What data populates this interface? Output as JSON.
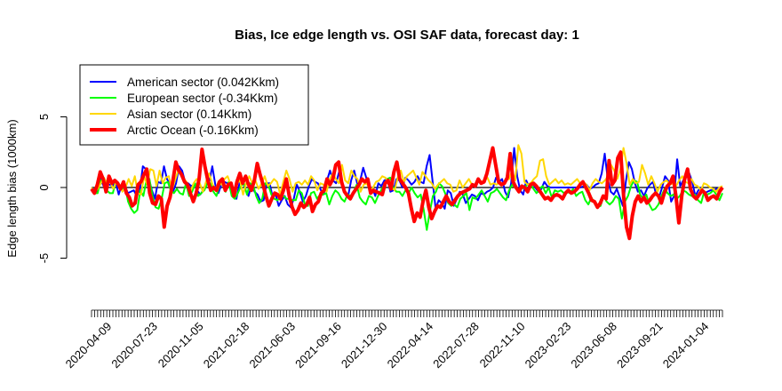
{
  "chart_data": {
    "type": "line",
    "title": "Bias, Ice edge length vs. OSI SAF data, forecast day: 1",
    "xlabel": "",
    "ylabel": "Edge length bias (1000km)",
    "ylim": [
      -8.5,
      8.5
    ],
    "yticks": [
      -5,
      0,
      5
    ],
    "x_tick_labels": [
      "2020-04-09",
      "2020-07-23",
      "2020-11-05",
      "2021-02-18",
      "2021-06-03",
      "2021-09-16",
      "2021-12-30",
      "2022-04-14",
      "2022-07-28",
      "2022-11-10",
      "2023-02-23",
      "2023-06-08",
      "2023-09-21",
      "2024-01-04"
    ],
    "x_tick_count": 208,
    "x_date_range": [
      "2020-03-05",
      "2024-02-15"
    ],
    "legend_position": "top-left",
    "series": [
      {
        "name": "American sector (0.042Kkm)",
        "color": "#0000ff",
        "values": [
          0,
          -0.2,
          -0.3,
          0.6,
          0.1,
          0.3,
          0.2,
          0.1,
          0.4,
          -0.5,
          0.2,
          0.2,
          -0.4,
          -0.3,
          -0.2,
          -0.6,
          -0.2,
          1.5,
          1.3,
          0.6,
          -0.2,
          -0.8,
          0.4,
          0.3,
          1.5,
          0.6,
          0.2,
          -0.3,
          0.3,
          1.5,
          1.2,
          0.4,
          0.3,
          0.1,
          0.2,
          -0.2,
          -0.5,
          -0.2,
          0.3,
          0.4,
          1.5,
          0.2,
          -0.4,
          0.2,
          0.4,
          0.3,
          0.3,
          -0.3,
          -0.8,
          0.3,
          0.6,
          -0.2,
          -0.6,
          0.2,
          -0.3,
          -0.5,
          -1.0,
          -0.9,
          0.3,
          0.3,
          -0.7,
          -0.5,
          -1.3,
          -0.9,
          -0.6,
          -1.2,
          -1.4,
          -0.8,
          0.2,
          -0.3,
          -1.0,
          -0.6,
          0.1,
          0.6,
          0.4,
          0.3,
          -0.2,
          -0.4,
          0.5,
          1.2,
          0.5,
          0.3,
          1.1,
          0.3,
          -0.4,
          -0.6,
          0.5,
          1.2,
          0.3,
          0.5,
          1.4,
          0.7,
          -0.1,
          0.0,
          -0.6,
          0.3,
          0.1,
          0.5,
          0.6,
          -0.3,
          -0.2,
          0.6,
          0.5,
          0.0,
          0.7,
          0.5,
          0.2,
          0.4,
          0.8,
          0.4,
          0.3,
          1.5,
          2.3,
          0.4,
          -1.5,
          -0.9,
          -1.1,
          -1.5,
          -0.2,
          -0.4,
          -1.3,
          -0.8,
          -0.3,
          -0.5,
          -1.1,
          -0.8,
          -0.5,
          -0.6,
          -0.9,
          -0.4,
          -0.5,
          -0.3,
          -0.2,
          0.0,
          0.7,
          0.4,
          0.6,
          -0.3,
          -0.7,
          0.3,
          2.8,
          0.8,
          -0.2,
          -0.5,
          0.5,
          0.0,
          0.3,
          0.0,
          -0.3,
          -0.1,
          0.4,
          0.1,
          0.0,
          0.0,
          0.0,
          0.0,
          0.0,
          0.0,
          0.0,
          0.0,
          0.0,
          0.0,
          0.0,
          0.1,
          0.2,
          -0.1,
          0.0,
          0.2,
          0.3,
          1.0,
          2.4,
          0.6,
          -0.3,
          -0.5,
          -0.1,
          -0.7,
          -1.3,
          0.4,
          1.8,
          1.3,
          0.3,
          -0.3,
          -0.2,
          -0.6,
          -0.1,
          0.2,
          0.4,
          -0.5,
          -0.7,
          0.0,
          0.8,
          0.5,
          -1.0,
          -0.6,
          2.0,
          0.1,
          0.5,
          0.8,
          1.0,
          0.4,
          -0.6,
          -0.2,
          0.0,
          -0.4,
          -0.3,
          -0.2,
          -0.2,
          -0.1,
          0.0,
          0.0
        ]
      },
      {
        "name": "European sector (-0.34Kkm)",
        "color": "#00ff00",
        "values": [
          -0.1,
          -0.4,
          -0.4,
          0.5,
          0.6,
          -0.2,
          -0.4,
          -0.4,
          0.5,
          0.2,
          -0.1,
          0.1,
          -1.0,
          -1.5,
          -1.8,
          -1.6,
          -0.2,
          -0.6,
          0.5,
          0.6,
          -0.6,
          -1.4,
          -1.5,
          -0.8,
          0.3,
          0.4,
          -0.2,
          -0.4,
          -0.1,
          -0.4,
          -0.5,
          0.3,
          -0.6,
          -0.3,
          0.3,
          -0.6,
          -0.4,
          -0.2,
          0.3,
          0.3,
          -0.3,
          -0.6,
          0.2,
          0.4,
          -0.3,
          0.4,
          -0.6,
          -0.8,
          -0.4,
          0.1,
          0.3,
          -0.5,
          0.3,
          0.2,
          -0.6,
          -1.1,
          -0.8,
          0.3,
          0.2,
          -0.5,
          -0.8,
          -0.9,
          -0.7,
          -0.6,
          -0.8,
          -0.8,
          -0.9,
          -0.9,
          -0.2,
          -0.4,
          -1.2,
          -1.3,
          -0.4,
          -0.3,
          -0.8,
          -0.5,
          -0.5,
          -0.4,
          -1.2,
          -0.6,
          -0.2,
          -0.4,
          -0.8,
          -1.0,
          -0.5,
          -0.6,
          -0.3,
          0.2,
          -0.7,
          -1.0,
          -1.2,
          -0.6,
          -0.7,
          -1.1,
          -0.6,
          -0.2,
          0.2,
          0.6,
          0.7,
          0.0,
          -0.3,
          -0.3,
          -0.6,
          -0.2,
          -0.4,
          0.0,
          -0.4,
          -0.7,
          -0.5,
          -1.6,
          -3.0,
          -1.7,
          -0.6,
          -0.3,
          0.3,
          0.1,
          -0.4,
          -1.1,
          -1.3,
          -1.2,
          -1.4,
          -0.8,
          -0.6,
          -0.4,
          -1.6,
          -0.7,
          -0.8,
          -0.5,
          -0.2,
          -0.6,
          -1.0,
          -0.4,
          -0.3,
          -0.1,
          -0.4,
          -0.7,
          -0.9,
          -0.2,
          0.2,
          0.0,
          -0.2,
          -0.1,
          0.0,
          0.2,
          0.3,
          -0.1,
          -0.4,
          -0.1,
          0.1,
          -0.4,
          0.0,
          -0.7,
          -0.2,
          -0.3,
          -0.2,
          -0.4,
          -0.3,
          -0.4,
          -0.1,
          -0.6,
          -0.4,
          -0.3,
          -0.9,
          -1.2,
          -0.7,
          -1.1,
          -1.4,
          -1.3,
          -0.6,
          -1.0,
          -1.2,
          -1.0,
          -0.6,
          -0.8,
          -2.2,
          -1.0,
          -0.6,
          0.1,
          0.5,
          0.4,
          -0.5,
          -0.8,
          -0.5,
          -1.2,
          -1.6,
          -1.5,
          -1.2,
          -0.6,
          -0.1,
          -0.4,
          -0.6,
          -0.5,
          -0.8,
          -0.6,
          -0.2,
          -0.3,
          -0.5,
          -0.6,
          -0.5,
          -0.9,
          -1.1,
          -0.3,
          -0.5,
          -0.4,
          -0.2,
          -0.5,
          -0.9,
          -0.4
        ]
      },
      {
        "name": "Asian sector (0.14Kkm)",
        "color": "#ffd700",
        "values": [
          0.0,
          -0.3,
          -0.1,
          0.3,
          0.7,
          0.3,
          0.4,
          -0.1,
          0.4,
          0.2,
          -0.3,
          0.0,
          0.6,
          0.1,
          0.8,
          -0.4,
          -0.5,
          0.8,
          0.2,
          1.3,
          1.2,
          0.1,
          1.2,
          0.3,
          0.7,
          0.8,
          -0.2,
          0.5,
          1.2,
          1.0,
          0.6,
          0.3,
          -0.3,
          0.3,
          0.6,
          0.3,
          -0.3,
          0.4,
          1.0,
          0.3,
          -0.2,
          0.4,
          0.2,
          0.6,
          0.8,
          0.2,
          -0.3,
          0.3,
          0.5,
          -0.5,
          0.3,
          0.8,
          0.3,
          0.5,
          -0.1,
          0.3,
          0.8,
          0.1,
          0.3,
          0.6,
          0.4,
          -0.5,
          0.4,
          1.2,
          0.6,
          -0.3,
          0.3,
          0.4,
          0.2,
          0.5,
          0.2,
          0.8,
          0.5,
          -0.2,
          0.3,
          0.2,
          -0.3,
          0.6,
          1.0,
          0.6,
          0.3,
          1.6,
          0.5,
          0.3,
          1.2,
          0.8,
          0.6,
          -0.3,
          0.2,
          0.3,
          -0.2,
          0.0,
          0.4,
          0.5,
          0.8,
          0.7,
          0.3,
          0.0,
          -0.2,
          0.7,
          1.2,
          0.4,
          0.8,
          1.0,
          1.2,
          0.7,
          0.2,
          1.1,
          0.8,
          0.5,
          0.3,
          -0.1,
          0.2,
          0.4,
          0.6,
          0.3,
          0.2,
          -0.3,
          -0.2,
          0.5,
          0.0,
          0.3,
          0.6,
          0.2,
          0.2,
          0.6,
          0.4,
          0.5,
          0.7,
          0.2,
          0.3,
          0.2,
          0.4,
          0.2,
          0.5,
          0.6,
          1.2,
          0.5,
          3.0,
          2.4,
          0.4,
          0.2,
          0.3,
          0.6,
          0.8,
          1.9,
          2.0,
          0.8,
          0.2,
          0.4,
          0.6,
          0.3,
          0.5,
          0.2,
          0.3,
          0.2,
          0.4,
          0.6,
          0.3,
          0.4,
          0.2,
          -0.2,
          0.3,
          0.6,
          0.4,
          0.3,
          0.5,
          0.8,
          1.6,
          1.2,
          0.6,
          1.3,
          2.8,
          1.7,
          0.2,
          0.6,
          0.3,
          0.4,
          1.6,
          1.0,
          0.2,
          0.8,
          0.3,
          -0.3,
          0.2,
          0.4,
          0.5,
          0.2,
          0.3,
          0.1,
          0.5,
          0.8,
          0.4,
          0.3,
          0.6,
          0.2,
          0.1,
          -0.2,
          0.3,
          0.2,
          0.0,
          -0.1,
          -0.3,
          0.0,
          0.1
        ]
      },
      {
        "name": "Arctic Ocean (-0.16Kkm)",
        "color": "#ff0000",
        "values": [
          -0.1,
          -0.4,
          0.2,
          1.1,
          0.6,
          -0.3,
          0.8,
          0.3,
          0.5,
          0.3,
          -0.1,
          0.4,
          -0.4,
          -0.7,
          -1.3,
          -1.1,
          0.2,
          0.4,
          0.9,
          1.3,
          -0.4,
          -1.1,
          -1.2,
          -0.6,
          -0.8,
          -2.8,
          -1.3,
          -0.7,
          0.5,
          1.8,
          1.2,
          0.9,
          0.4,
          0.2,
          -0.4,
          -1.0,
          -0.4,
          0.6,
          2.7,
          1.5,
          0.5,
          -0.2,
          0.0,
          -0.2,
          0.4,
          0.6,
          -0.2,
          0.2,
          0.3,
          -0.6,
          0.4,
          1.0,
          0.3,
          0.8,
          0.2,
          -0.2,
          0.5,
          1.7,
          0.9,
          0.2,
          -0.6,
          -1.3,
          -0.8,
          -0.4,
          -0.5,
          -0.8,
          -0.2,
          0.6,
          -0.6,
          -1.4,
          -1.9,
          -1.6,
          -1.1,
          -1.4,
          -1.2,
          -0.7,
          -1.7,
          -1.2,
          -1.0,
          -0.4,
          -0.2,
          0.6,
          0.2,
          0.6,
          1.6,
          1.8,
          0.4,
          -0.3,
          -0.6,
          -0.8,
          -0.4,
          -0.1,
          0.2,
          0.6,
          0.4,
          0.6,
          -0.4,
          -0.2,
          -0.3,
          -0.4,
          -0.5,
          0.3,
          0.5,
          -0.1,
          1.1,
          1.8,
          0.6,
          0.3,
          0.0,
          -0.4,
          -1.5,
          -2.4,
          -1.8,
          -2.1,
          -1.0,
          -0.2,
          -1.4,
          -2.2,
          -1.7,
          -1.3,
          -1.4,
          -1.0,
          -0.6,
          -1.0,
          -1.2,
          -0.9,
          -0.6,
          -0.4,
          -0.3,
          -0.2,
          -0.1,
          0.2,
          0.1,
          0.6,
          0.3,
          0.4,
          1.0,
          1.9,
          2.8,
          1.6,
          0.4,
          0.2,
          0.3,
          0.7,
          2.4,
          0.4,
          0.0,
          -0.3,
          0.1,
          0.0,
          -0.3,
          0.2,
          0.3,
          0.1,
          -0.2,
          -0.5,
          -0.8,
          -0.7,
          -0.9,
          -0.6,
          -0.5,
          -0.6,
          -0.8,
          -0.4,
          -0.2,
          -0.4,
          -0.3,
          -0.1,
          0.2,
          0.4,
          0.0,
          -0.4,
          -0.9,
          -1.0,
          -1.4,
          -1.1,
          -0.6,
          -0.8,
          1.9,
          0.2,
          0.5,
          2.1,
          2.5,
          -0.6,
          -2.8,
          -3.6,
          -2.0,
          -1.0,
          -0.6,
          -1.0,
          -0.7,
          -1.1,
          -0.9,
          -0.6,
          -0.4,
          -0.6,
          -1.1,
          -0.4,
          0.1,
          0.3,
          0.8,
          -0.6,
          -2.5,
          -0.6,
          0.6,
          1.3,
          -0.1,
          -0.6,
          -0.8,
          -0.5,
          -0.2,
          -0.4,
          -0.9,
          -0.7,
          -0.6,
          -0.8,
          -0.3,
          0.0
        ]
      }
    ]
  }
}
